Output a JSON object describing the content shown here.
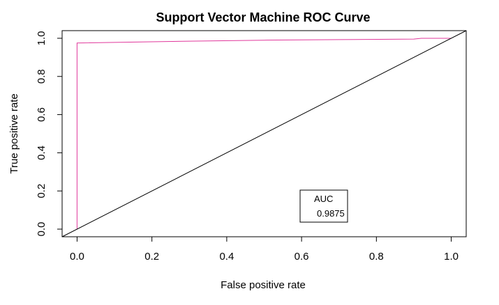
{
  "chart_data": {
    "type": "line",
    "title": "Support Vector Machine ROC Curve",
    "xlabel": "False positive rate",
    "ylabel": "True positive rate",
    "xlim": [
      -0.04,
      1.04
    ],
    "ylim": [
      -0.04,
      1.04
    ],
    "x_ticks": [
      "0.0",
      "0.2",
      "0.4",
      "0.6",
      "0.8",
      "1.0"
    ],
    "y_ticks": [
      "0.0",
      "0.2",
      "0.4",
      "0.6",
      "0.8",
      "1.0"
    ],
    "grid": false,
    "series": [
      {
        "color": "#e0379b",
        "x": [
          0.0,
          0.0,
          0.0,
          0.3,
          0.5,
          0.7,
          0.9,
          0.92,
          1.0
        ],
        "y": [
          0.0,
          0.975,
          0.975,
          0.985,
          0.99,
          0.993,
          0.996,
          1.0,
          1.0
        ]
      },
      {
        "color": "#000000",
        "x": [
          -0.04,
          1.04
        ],
        "y": [
          -0.04,
          1.04
        ]
      }
    ],
    "legend": {
      "position": "bottom-right",
      "title": "AUC",
      "value": "0.9875"
    }
  }
}
